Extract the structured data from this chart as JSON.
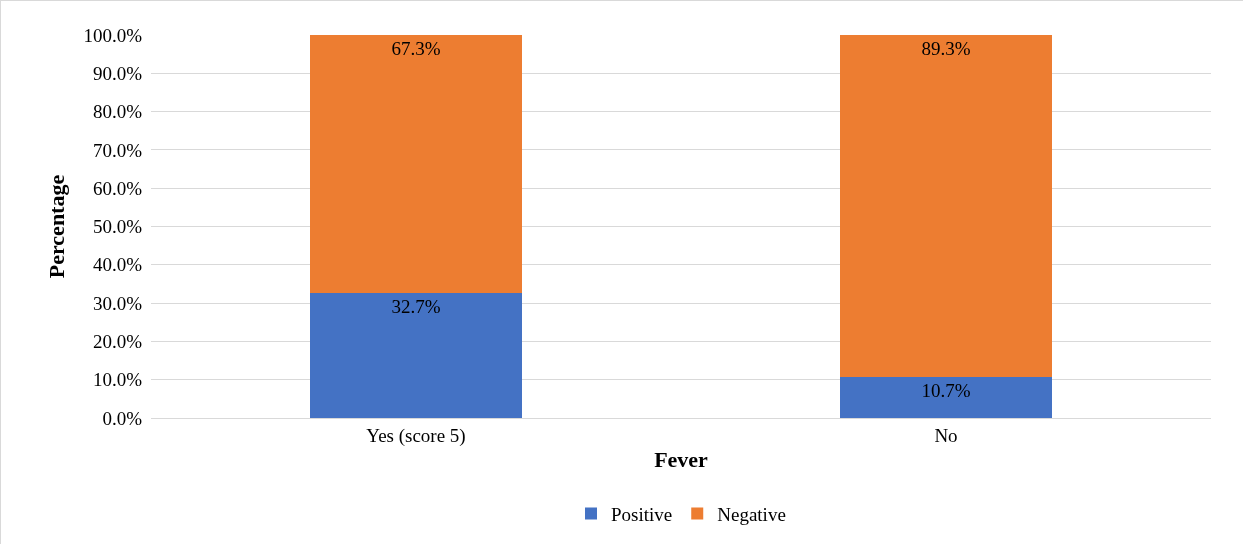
{
  "chart_data": {
    "type": "bar",
    "stacked": true,
    "categories": [
      "Yes (score 5)",
      "No"
    ],
    "xlabel": "Fever",
    "ylabel": "Percentage",
    "series": [
      {
        "name": "Positive",
        "color": "#4472c4",
        "values": [
          32.7,
          10.7
        ],
        "value_labels": [
          "32.7%",
          "10.7%"
        ]
      },
      {
        "name": "Negative",
        "color": "#ed7d31",
        "values": [
          67.3,
          89.3
        ],
        "value_labels": [
          "67.3%",
          "89.3%"
        ]
      }
    ],
    "ylim": [
      0,
      100
    ],
    "yticks": [
      {
        "value": 0,
        "label": "0.0%"
      },
      {
        "value": 10,
        "label": "10.0%"
      },
      {
        "value": 20,
        "label": "20.0%"
      },
      {
        "value": 30,
        "label": "30.0%"
      },
      {
        "value": 40,
        "label": "40.0%"
      },
      {
        "value": 50,
        "label": "50.0%"
      },
      {
        "value": 60,
        "label": "60.0%"
      },
      {
        "value": 70,
        "label": "70.0%"
      },
      {
        "value": 80,
        "label": "80.0%"
      },
      {
        "value": 90,
        "label": "90.0%"
      },
      {
        "value": 100,
        "label": "100.0%"
      }
    ],
    "grid": "y",
    "legend": "bottom"
  }
}
